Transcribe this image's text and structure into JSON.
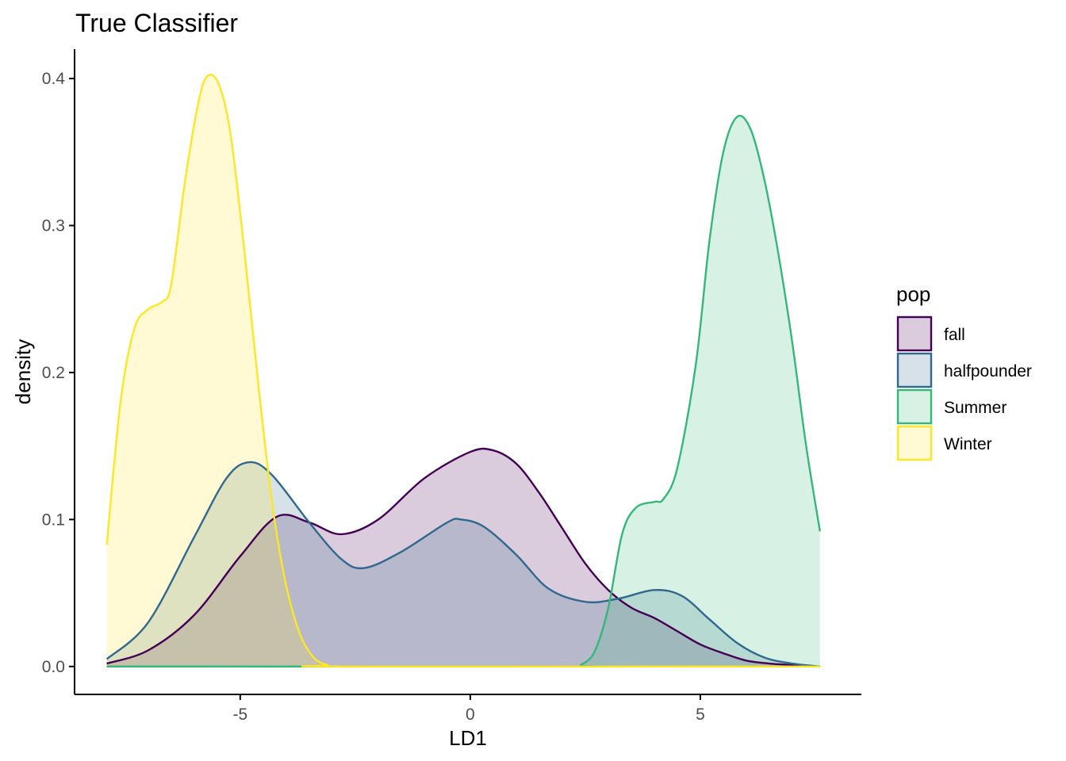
{
  "chart_data": {
    "type": "area",
    "title": "True Classifier",
    "xlabel": "LD1",
    "ylabel": "density",
    "xlim": [
      -8.6,
      8.5
    ],
    "ylim": [
      -0.019,
      0.42
    ],
    "x_ticks": [
      -5,
      0,
      5
    ],
    "x_tick_labels": [
      "-5",
      "0",
      "5"
    ],
    "y_ticks": [
      0.0,
      0.1,
      0.2,
      0.3,
      0.4
    ],
    "y_tick_labels": [
      "0.0",
      "0.1",
      "0.2",
      "0.3",
      "0.4"
    ],
    "grid": false,
    "legend": {
      "title": "pop",
      "position": "right"
    },
    "series": [
      {
        "name": "fall",
        "color": "#440154",
        "fill_opacity": 0.2,
        "points": [
          [
            -7.9,
            0.002
          ],
          [
            -7.0,
            0.011
          ],
          [
            -6.0,
            0.035
          ],
          [
            -5.0,
            0.075
          ],
          [
            -4.2,
            0.102
          ],
          [
            -3.5,
            0.098
          ],
          [
            -2.8,
            0.09
          ],
          [
            -2.0,
            0.1
          ],
          [
            -1.0,
            0.128
          ],
          [
            0.0,
            0.146
          ],
          [
            0.5,
            0.147
          ],
          [
            1.0,
            0.138
          ],
          [
            1.5,
            0.118
          ],
          [
            2.0,
            0.094
          ],
          [
            2.5,
            0.07
          ],
          [
            3.0,
            0.052
          ],
          [
            3.5,
            0.04
          ],
          [
            4.0,
            0.033
          ],
          [
            4.5,
            0.024
          ],
          [
            5.0,
            0.015
          ],
          [
            5.5,
            0.009
          ],
          [
            6.0,
            0.004
          ],
          [
            6.5,
            0.002
          ],
          [
            7.0,
            0.001
          ],
          [
            7.6,
            0.0
          ]
        ]
      },
      {
        "name": "halfpounder",
        "color": "#31688E",
        "fill_opacity": 0.2,
        "points": [
          [
            -7.9,
            0.005
          ],
          [
            -7.0,
            0.03
          ],
          [
            -6.0,
            0.088
          ],
          [
            -5.3,
            0.128
          ],
          [
            -4.8,
            0.139
          ],
          [
            -4.3,
            0.13
          ],
          [
            -3.5,
            0.098
          ],
          [
            -2.8,
            0.073
          ],
          [
            -2.3,
            0.067
          ],
          [
            -1.5,
            0.078
          ],
          [
            -0.5,
            0.098
          ],
          [
            -0.2,
            0.1
          ],
          [
            0.3,
            0.095
          ],
          [
            1.0,
            0.076
          ],
          [
            1.7,
            0.053
          ],
          [
            2.5,
            0.044
          ],
          [
            3.2,
            0.046
          ],
          [
            4.0,
            0.052
          ],
          [
            4.6,
            0.048
          ],
          [
            5.2,
            0.032
          ],
          [
            5.8,
            0.016
          ],
          [
            6.4,
            0.006
          ],
          [
            7.0,
            0.002
          ],
          [
            7.6,
            0.0
          ]
        ]
      },
      {
        "name": "Summer",
        "color": "#35B779",
        "fill_opacity": 0.2,
        "points": [
          [
            -7.9,
            0.0
          ],
          [
            2.2,
            0.0
          ],
          [
            2.4,
            0.001
          ],
          [
            2.7,
            0.01
          ],
          [
            3.0,
            0.04
          ],
          [
            3.3,
            0.09
          ],
          [
            3.6,
            0.108
          ],
          [
            4.0,
            0.112
          ],
          [
            4.2,
            0.114
          ],
          [
            4.5,
            0.135
          ],
          [
            4.9,
            0.205
          ],
          [
            5.2,
            0.29
          ],
          [
            5.5,
            0.35
          ],
          [
            5.8,
            0.374
          ],
          [
            6.1,
            0.365
          ],
          [
            6.4,
            0.33
          ],
          [
            6.7,
            0.28
          ],
          [
            7.0,
            0.22
          ],
          [
            7.3,
            0.15
          ],
          [
            7.6,
            0.092
          ]
        ]
      },
      {
        "name": "Winter",
        "color": "#FDE725",
        "fill_opacity": 0.2,
        "points": [
          [
            -7.9,
            0.083
          ],
          [
            -7.6,
            0.18
          ],
          [
            -7.3,
            0.23
          ],
          [
            -7.0,
            0.243
          ],
          [
            -6.7,
            0.248
          ],
          [
            -6.5,
            0.26
          ],
          [
            -6.2,
            0.33
          ],
          [
            -5.9,
            0.385
          ],
          [
            -5.7,
            0.402
          ],
          [
            -5.45,
            0.395
          ],
          [
            -5.2,
            0.36
          ],
          [
            -4.9,
            0.28
          ],
          [
            -4.6,
            0.19
          ],
          [
            -4.3,
            0.11
          ],
          [
            -4.0,
            0.055
          ],
          [
            -3.7,
            0.022
          ],
          [
            -3.4,
            0.006
          ],
          [
            -3.1,
            0.001
          ],
          [
            -2.8,
            0.0
          ],
          [
            7.6,
            0.0
          ]
        ]
      }
    ]
  }
}
